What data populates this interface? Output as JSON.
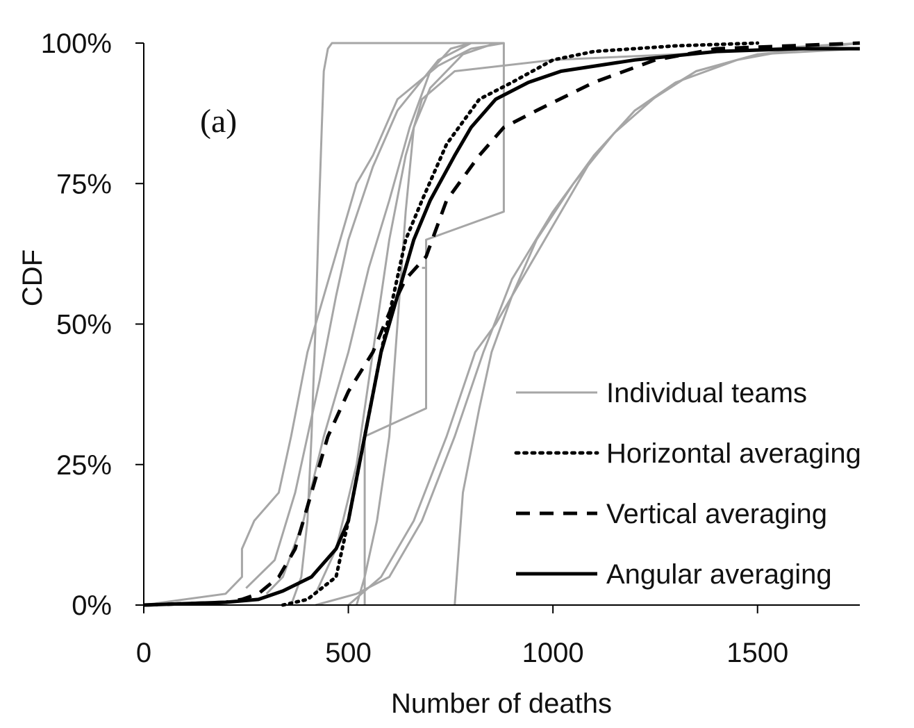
{
  "chart_data": {
    "type": "line",
    "title": "",
    "panel_label": "(a)",
    "xlabel": "Number of deaths",
    "ylabel": "CDF",
    "xlim": [
      0,
      1750
    ],
    "ylim": [
      0,
      1
    ],
    "x_ticks": [
      0,
      500,
      1000,
      1500
    ],
    "x_tick_labels": [
      "0",
      "500",
      "1000",
      "1500"
    ],
    "y_ticks": [
      0,
      0.25,
      0.5,
      0.75,
      1.0
    ],
    "y_tick_labels": [
      "0%",
      "25%",
      "50%",
      "75%",
      "100%"
    ],
    "legend_location": "lower-right",
    "legend": [
      {
        "name": "Individual teams",
        "style": "gray-solid"
      },
      {
        "name": "Horizontal averaging",
        "style": "dotted"
      },
      {
        "name": "Vertical averaging",
        "style": "dashed"
      },
      {
        "name": "Angular averaging",
        "style": "solid"
      }
    ],
    "colors": {
      "individual": "#a6a6a6",
      "average": "#000000"
    },
    "series": [
      {
        "name": "Individual teams",
        "style": "gray-solid",
        "points": [
          [
            360,
            0
          ],
          [
            385,
            0.05
          ],
          [
            400,
            0.15
          ],
          [
            410,
            0.3
          ],
          [
            420,
            0.5
          ],
          [
            428,
            0.7
          ],
          [
            435,
            0.85
          ],
          [
            440,
            0.95
          ],
          [
            450,
            0.99
          ],
          [
            460,
            1.0
          ],
          [
            880,
            1.0
          ],
          [
            880,
            0.7
          ],
          [
            690,
            0.65
          ],
          [
            690,
            0.6
          ],
          [
            680,
            0.6
          ]
        ]
      },
      {
        "name": "Individual teams",
        "style": "gray-solid",
        "points": [
          [
            0,
            0
          ],
          [
            200,
            0.02
          ],
          [
            240,
            0.05
          ],
          [
            240,
            0.1
          ],
          [
            270,
            0.15
          ],
          [
            330,
            0.2
          ],
          [
            360,
            0.3
          ],
          [
            400,
            0.45
          ],
          [
            460,
            0.6
          ],
          [
            520,
            0.75
          ],
          [
            560,
            0.8
          ],
          [
            620,
            0.9
          ],
          [
            720,
            0.96
          ],
          [
            800,
            0.99
          ],
          [
            880,
            1.0
          ]
        ]
      },
      {
        "name": "Individual teams",
        "style": "gray-solid",
        "points": [
          [
            250,
            0.03
          ],
          [
            320,
            0.08
          ],
          [
            370,
            0.2
          ],
          [
            430,
            0.4
          ],
          [
            470,
            0.55
          ],
          [
            500,
            0.65
          ],
          [
            560,
            0.78
          ],
          [
            620,
            0.88
          ],
          [
            720,
            0.97
          ],
          [
            800,
            1.0
          ]
        ]
      },
      {
        "name": "Individual teams",
        "style": "gray-solid",
        "points": [
          [
            300,
            0.02
          ],
          [
            340,
            0.05
          ],
          [
            390,
            0.15
          ],
          [
            440,
            0.3
          ],
          [
            500,
            0.45
          ],
          [
            550,
            0.6
          ],
          [
            600,
            0.72
          ],
          [
            650,
            0.85
          ],
          [
            700,
            0.95
          ],
          [
            750,
            0.99
          ],
          [
            800,
            1.0
          ]
        ]
      },
      {
        "name": "Individual teams",
        "style": "gray-solid",
        "points": [
          [
            420,
            0.02
          ],
          [
            470,
            0.1
          ],
          [
            520,
            0.25
          ],
          [
            560,
            0.45
          ],
          [
            600,
            0.65
          ],
          [
            640,
            0.8
          ],
          [
            680,
            0.9
          ],
          [
            760,
            0.95
          ],
          [
            1000,
            0.97
          ],
          [
            1300,
            0.98
          ],
          [
            1750,
            1.0
          ]
        ]
      },
      {
        "name": "Individual teams",
        "style": "gray-solid",
        "points": [
          [
            520,
            0.0
          ],
          [
            540,
            0.05
          ],
          [
            570,
            0.15
          ],
          [
            600,
            0.3
          ],
          [
            620,
            0.5
          ],
          [
            640,
            0.7
          ],
          [
            660,
            0.85
          ],
          [
            700,
            0.92
          ],
          [
            780,
            0.98
          ],
          [
            860,
            1.0
          ]
        ]
      },
      {
        "name": "Individual teams",
        "style": "gray-solid",
        "points": [
          [
            540,
            0.0
          ],
          [
            540,
            0.3
          ],
          [
            690,
            0.35
          ],
          [
            690,
            0.6
          ]
        ]
      },
      {
        "name": "Individual teams",
        "style": "gray-solid",
        "points": [
          [
            420,
            0.0
          ],
          [
            520,
            0.02
          ],
          [
            600,
            0.05
          ],
          [
            680,
            0.15
          ],
          [
            760,
            0.3
          ],
          [
            830,
            0.45
          ],
          [
            900,
            0.58
          ],
          [
            1000,
            0.7
          ],
          [
            1100,
            0.8
          ],
          [
            1200,
            0.88
          ],
          [
            1350,
            0.95
          ],
          [
            1500,
            0.98
          ],
          [
            1750,
            1.0
          ]
        ]
      },
      {
        "name": "Individual teams",
        "style": "gray-solid",
        "points": [
          [
            500,
            0.0
          ],
          [
            580,
            0.05
          ],
          [
            660,
            0.15
          ],
          [
            740,
            0.3
          ],
          [
            810,
            0.45
          ],
          [
            860,
            0.5
          ],
          [
            940,
            0.6
          ],
          [
            1020,
            0.7
          ],
          [
            1100,
            0.8
          ],
          [
            1200,
            0.88
          ],
          [
            1300,
            0.93
          ],
          [
            1450,
            0.97
          ],
          [
            1600,
            0.99
          ],
          [
            1750,
            1.0
          ]
        ]
      },
      {
        "name": "Individual teams",
        "style": "gray-solid",
        "points": [
          [
            760,
            0.0
          ],
          [
            770,
            0.1
          ],
          [
            780,
            0.2
          ],
          [
            820,
            0.35
          ],
          [
            850,
            0.45
          ],
          [
            900,
            0.55
          ],
          [
            960,
            0.65
          ],
          [
            1050,
            0.75
          ],
          [
            1150,
            0.84
          ],
          [
            1260,
            0.91
          ],
          [
            1350,
            0.95
          ],
          [
            1500,
            0.98
          ],
          [
            1750,
            0.99
          ]
        ]
      },
      {
        "name": "Horizontal averaging",
        "style": "dotted",
        "points": [
          [
            340,
            0.0
          ],
          [
            400,
            0.01
          ],
          [
            470,
            0.05
          ],
          [
            500,
            0.15
          ],
          [
            540,
            0.3
          ],
          [
            580,
            0.45
          ],
          [
            610,
            0.55
          ],
          [
            640,
            0.65
          ],
          [
            680,
            0.72
          ],
          [
            740,
            0.82
          ],
          [
            820,
            0.9
          ],
          [
            900,
            0.93
          ],
          [
            1000,
            0.97
          ],
          [
            1100,
            0.985
          ],
          [
            1300,
            0.995
          ],
          [
            1500,
            1.0
          ]
        ]
      },
      {
        "name": "Vertical averaging",
        "style": "dashed",
        "points": [
          [
            0,
            0.0
          ],
          [
            200,
            0.005
          ],
          [
            240,
            0.01
          ],
          [
            280,
            0.02
          ],
          [
            330,
            0.05
          ],
          [
            370,
            0.1
          ],
          [
            410,
            0.2
          ],
          [
            450,
            0.3
          ],
          [
            500,
            0.38
          ],
          [
            560,
            0.45
          ],
          [
            600,
            0.52
          ],
          [
            640,
            0.58
          ],
          [
            690,
            0.62
          ],
          [
            740,
            0.72
          ],
          [
            820,
            0.8
          ],
          [
            880,
            0.85
          ],
          [
            960,
            0.88
          ],
          [
            1100,
            0.93
          ],
          [
            1250,
            0.97
          ],
          [
            1400,
            0.99
          ],
          [
            1750,
            1.0
          ]
        ]
      },
      {
        "name": "Angular averaging",
        "style": "solid",
        "points": [
          [
            0,
            0.0
          ],
          [
            200,
            0.005
          ],
          [
            280,
            0.01
          ],
          [
            340,
            0.025
          ],
          [
            410,
            0.05
          ],
          [
            470,
            0.1
          ],
          [
            500,
            0.15
          ],
          [
            540,
            0.3
          ],
          [
            580,
            0.45
          ],
          [
            620,
            0.55
          ],
          [
            660,
            0.65
          ],
          [
            700,
            0.72
          ],
          [
            760,
            0.8
          ],
          [
            800,
            0.85
          ],
          [
            860,
            0.9
          ],
          [
            940,
            0.93
          ],
          [
            1020,
            0.95
          ],
          [
            1200,
            0.97
          ],
          [
            1400,
            0.985
          ],
          [
            1600,
            0.99
          ],
          [
            1750,
            0.99
          ]
        ]
      }
    ]
  }
}
